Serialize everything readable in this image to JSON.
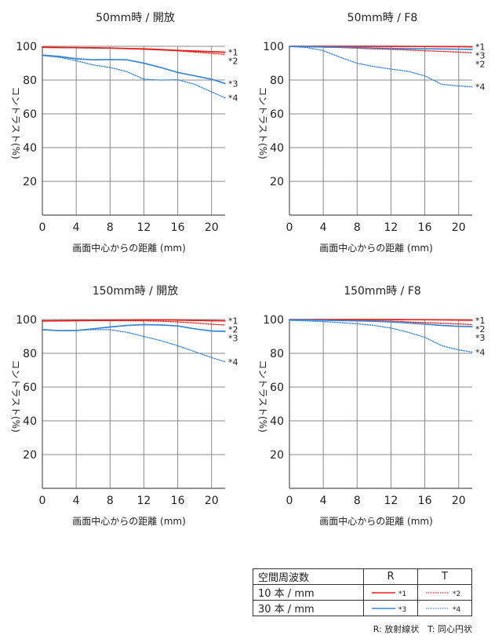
{
  "colors": {
    "red": "#e51e1e",
    "blue": "#3a86d6",
    "grid": "#8a8a8a",
    "text": "#222222"
  },
  "axes": {
    "xlabel": "画面中心からの距離 (mm)",
    "ylabel": "コントラスト(%)",
    "xticks": [
      0,
      4,
      8,
      12,
      16,
      20
    ],
    "yticks": [
      20,
      40,
      60,
      80,
      100
    ],
    "xlim": [
      0,
      21.6
    ],
    "ylim": [
      0,
      100
    ]
  },
  "chart_data": [
    {
      "type": "line",
      "title": "50mm時 / 開放",
      "x": [
        0,
        2,
        4,
        6,
        8,
        10,
        12,
        14,
        16,
        18,
        20,
        21.6
      ],
      "series": [
        {
          "name": "*1",
          "style": "solid",
          "color": "red",
          "values": [
            99.5,
            99.3,
            99.2,
            99.1,
            99,
            98.7,
            98.5,
            98.1,
            97.6,
            97.2,
            96.8,
            96.5
          ]
        },
        {
          "name": "*2",
          "style": "dotted",
          "color": "red",
          "values": [
            99.3,
            99.2,
            99.1,
            99,
            98.9,
            98.6,
            98.2,
            97.8,
            97.3,
            96.6,
            95.8,
            95.2
          ]
        },
        {
          "name": "*3",
          "style": "solid",
          "color": "blue",
          "values": [
            94.8,
            94,
            92.6,
            92,
            92.2,
            92,
            90,
            87.5,
            84.5,
            82.5,
            80.5,
            78
          ]
        },
        {
          "name": "*4",
          "style": "dotted",
          "color": "blue",
          "values": [
            94.5,
            93.5,
            91.5,
            89,
            87.5,
            85,
            80.5,
            80,
            80.2,
            77.5,
            73,
            69.5
          ]
        }
      ]
    },
    {
      "type": "line",
      "title": "50mm時 / F8",
      "x": [
        0,
        2,
        4,
        6,
        8,
        10,
        12,
        14,
        16,
        18,
        20,
        21.6
      ],
      "series": [
        {
          "name": "*1",
          "style": "solid",
          "color": "red",
          "values": [
            100,
            100,
            100,
            100,
            100,
            100,
            100,
            99.9,
            99.9,
            99.8,
            99.8,
            99.7
          ]
        },
        {
          "name": "*2",
          "style": "dotted",
          "color": "red",
          "values": [
            99.9,
            99.8,
            99.6,
            99.3,
            98.9,
            98.5,
            98.2,
            97.8,
            97.4,
            97,
            96.6,
            96.2
          ]
        },
        {
          "name": "*3",
          "style": "solid",
          "color": "blue",
          "values": [
            99.9,
            99.8,
            99.6,
            99.4,
            99.2,
            99,
            98.8,
            98.6,
            98.5,
            98.4,
            98.3,
            98.2
          ]
        },
        {
          "name": "*4",
          "style": "dotted",
          "color": "blue",
          "values": [
            99.9,
            99.3,
            97.5,
            93.5,
            90,
            88,
            86.5,
            85.2,
            82.5,
            77.5,
            76.5,
            76
          ]
        }
      ]
    },
    {
      "type": "line",
      "title": "150mm時 / 開放",
      "x": [
        0,
        2,
        4,
        6,
        8,
        10,
        12,
        14,
        16,
        18,
        20,
        21.6
      ],
      "series": [
        {
          "name": "*1",
          "style": "solid",
          "color": "red",
          "values": [
            99.2,
            99.3,
            99.4,
            99.5,
            99.6,
            99.7,
            99.8,
            99.8,
            99.7,
            99.5,
            99.3,
            99.2
          ]
        },
        {
          "name": "*2",
          "style": "dotted",
          "color": "red",
          "values": [
            99,
            99.1,
            99.2,
            99.3,
            99.3,
            99.3,
            99.2,
            99,
            98.6,
            98,
            97.2,
            96.8
          ]
        },
        {
          "name": "*3",
          "style": "solid",
          "color": "blue",
          "values": [
            94,
            93.4,
            93.5,
            94.5,
            95.6,
            96.5,
            97,
            96.8,
            96.2,
            94.5,
            93.2,
            93
          ]
        },
        {
          "name": "*4",
          "style": "dotted",
          "color": "blue",
          "values": [
            94,
            93.5,
            93.6,
            94,
            94,
            92.4,
            90,
            87.5,
            84.5,
            81,
            77.5,
            75
          ]
        }
      ]
    },
    {
      "type": "line",
      "title": "150mm時 / F8",
      "x": [
        0,
        2,
        4,
        6,
        8,
        10,
        12,
        14,
        16,
        18,
        20,
        21.6
      ],
      "series": [
        {
          "name": "*1",
          "style": "solid",
          "color": "red",
          "values": [
            100,
            100,
            100,
            100,
            100,
            100,
            100,
            99.9,
            99.9,
            99.8,
            99.7,
            99.6
          ]
        },
        {
          "name": "*2",
          "style": "dotted",
          "color": "red",
          "values": [
            99.9,
            99.9,
            99.8,
            99.7,
            99.5,
            99.3,
            99,
            98.6,
            98.2,
            97.8,
            97.4,
            97
          ]
        },
        {
          "name": "*3",
          "style": "solid",
          "color": "blue",
          "values": [
            99.9,
            99.8,
            99.6,
            99.4,
            99.2,
            99,
            98.6,
            98,
            97.3,
            96.5,
            96,
            95.8
          ]
        },
        {
          "name": "*4",
          "style": "dotted",
          "color": "blue",
          "values": [
            99.5,
            99.2,
            98.8,
            98.2,
            97.5,
            96.5,
            95,
            92.5,
            89.5,
            84.5,
            82,
            80.7
          ]
        }
      ]
    }
  ],
  "legend": {
    "header": [
      "空間周波数",
      "R",
      "T"
    ],
    "rows": [
      {
        "label": "10 本 / mm",
        "r_mark": "*1",
        "t_mark": "*2",
        "color": "red"
      },
      {
        "label": "30 本 / mm",
        "r_mark": "*3",
        "t_mark": "*4",
        "color": "blue"
      }
    ],
    "note": "R: 放射線状　T: 同心円状"
  }
}
